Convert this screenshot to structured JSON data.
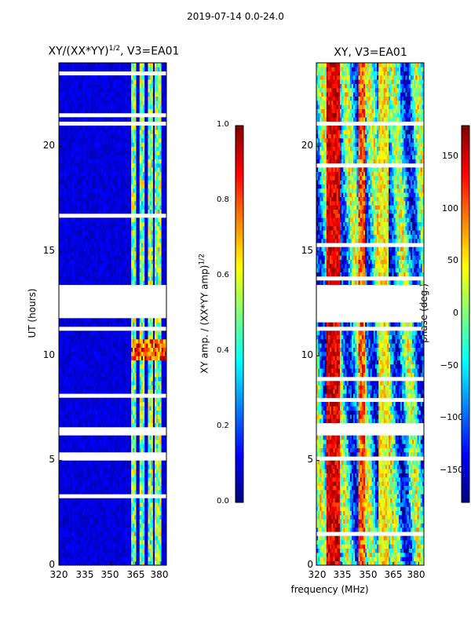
{
  "suptitle": "2019-07-14 0.0-24.0",
  "chart_data": [
    {
      "type": "heatmap",
      "title_base": "XY/(XX*YY)",
      "title_sup": "1/2",
      "title_tail": ", V3=EA01",
      "xlabel": "",
      "ylabel": "UT (hours)",
      "xlim": [
        320,
        383
      ],
      "ylim": [
        0,
        24
      ],
      "xticks": [
        "320",
        "335",
        "350",
        "365",
        "380"
      ],
      "yticks": [
        "0",
        "5",
        "10",
        "15",
        "20"
      ],
      "hot_channels_mhz": [
        364,
        369,
        374,
        378
      ],
      "gap_rows_ut": [
        5.05,
        6.45,
        11.3,
        12.6,
        21.1
      ],
      "colorbar": {
        "label_base": "XY amp. / (XX*YY amp)",
        "label_sup": "1/2",
        "range": [
          0.0,
          1.0
        ],
        "ticks": [
          "0.0",
          "0.2",
          "0.4",
          "0.6",
          "0.8",
          "1.0"
        ]
      }
    },
    {
      "type": "heatmap",
      "title": "XY, V3=EA01",
      "xlabel": "frequency (MHz)",
      "ylabel": "",
      "xlim": [
        320,
        383
      ],
      "ylim": [
        0,
        24
      ],
      "xticks": [
        "320",
        "335",
        "350",
        "365",
        "380"
      ],
      "yticks": [
        "0",
        "5",
        "10",
        "15",
        "20"
      ],
      "colorbar": {
        "label": "phase (deg.)",
        "range": [
          -180,
          180
        ],
        "ticks": [
          "−150",
          "−100",
          "−50",
          "0",
          "50",
          "100",
          "150"
        ]
      }
    }
  ]
}
